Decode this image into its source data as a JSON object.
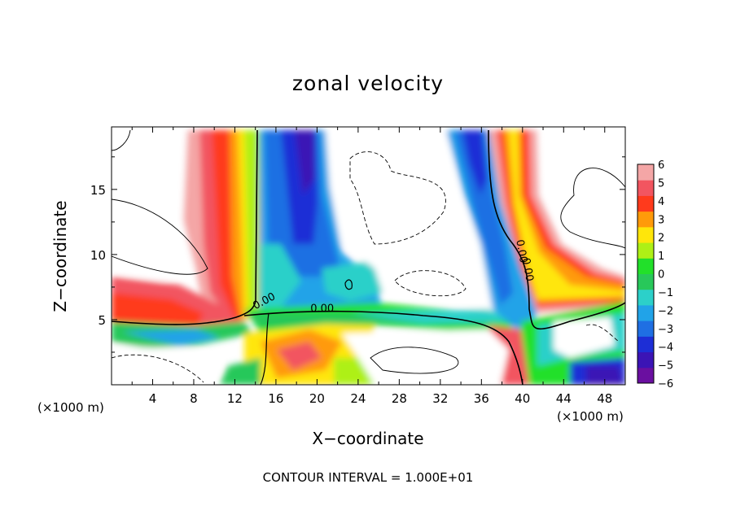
{
  "chart_data": {
    "type": "heatmap",
    "title": "zonal velocity",
    "xlabel": "X−coordinate",
    "ylabel": "Z−coordinate",
    "x_unit_left": "(×1000 m)",
    "x_unit_right": "(×1000 m)",
    "footer": "CONTOUR INTERVAL = 1.000E+01",
    "xlim": [
      0,
      50
    ],
    "ylim": [
      0,
      19.8
    ],
    "x_ticks": [
      4,
      8,
      12,
      16,
      20,
      24,
      28,
      32,
      36,
      40,
      44,
      48
    ],
    "y_ticks": [
      5,
      10,
      15
    ],
    "colorbar": {
      "min": -6,
      "max": 6,
      "labels": [
        "6",
        "5",
        "4",
        "3",
        "2",
        "1",
        "0",
        "−1",
        "−2",
        "−3",
        "−4",
        "−5",
        "−6"
      ],
      "colors": [
        "#6a0fa0",
        "#3b14b5",
        "#1d2ed6",
        "#1f6fe3",
        "#21a3e8",
        "#2cd0c9",
        "#28c85a",
        "#22e02a",
        "#aef016",
        "#ffe60a",
        "#ff9a0a",
        "#ff3a1c",
        "#f25560",
        "#f4a6a6"
      ]
    },
    "contour_labels": [
      "0.00",
      "0.00",
      "0.00",
      "0.00"
    ]
  }
}
